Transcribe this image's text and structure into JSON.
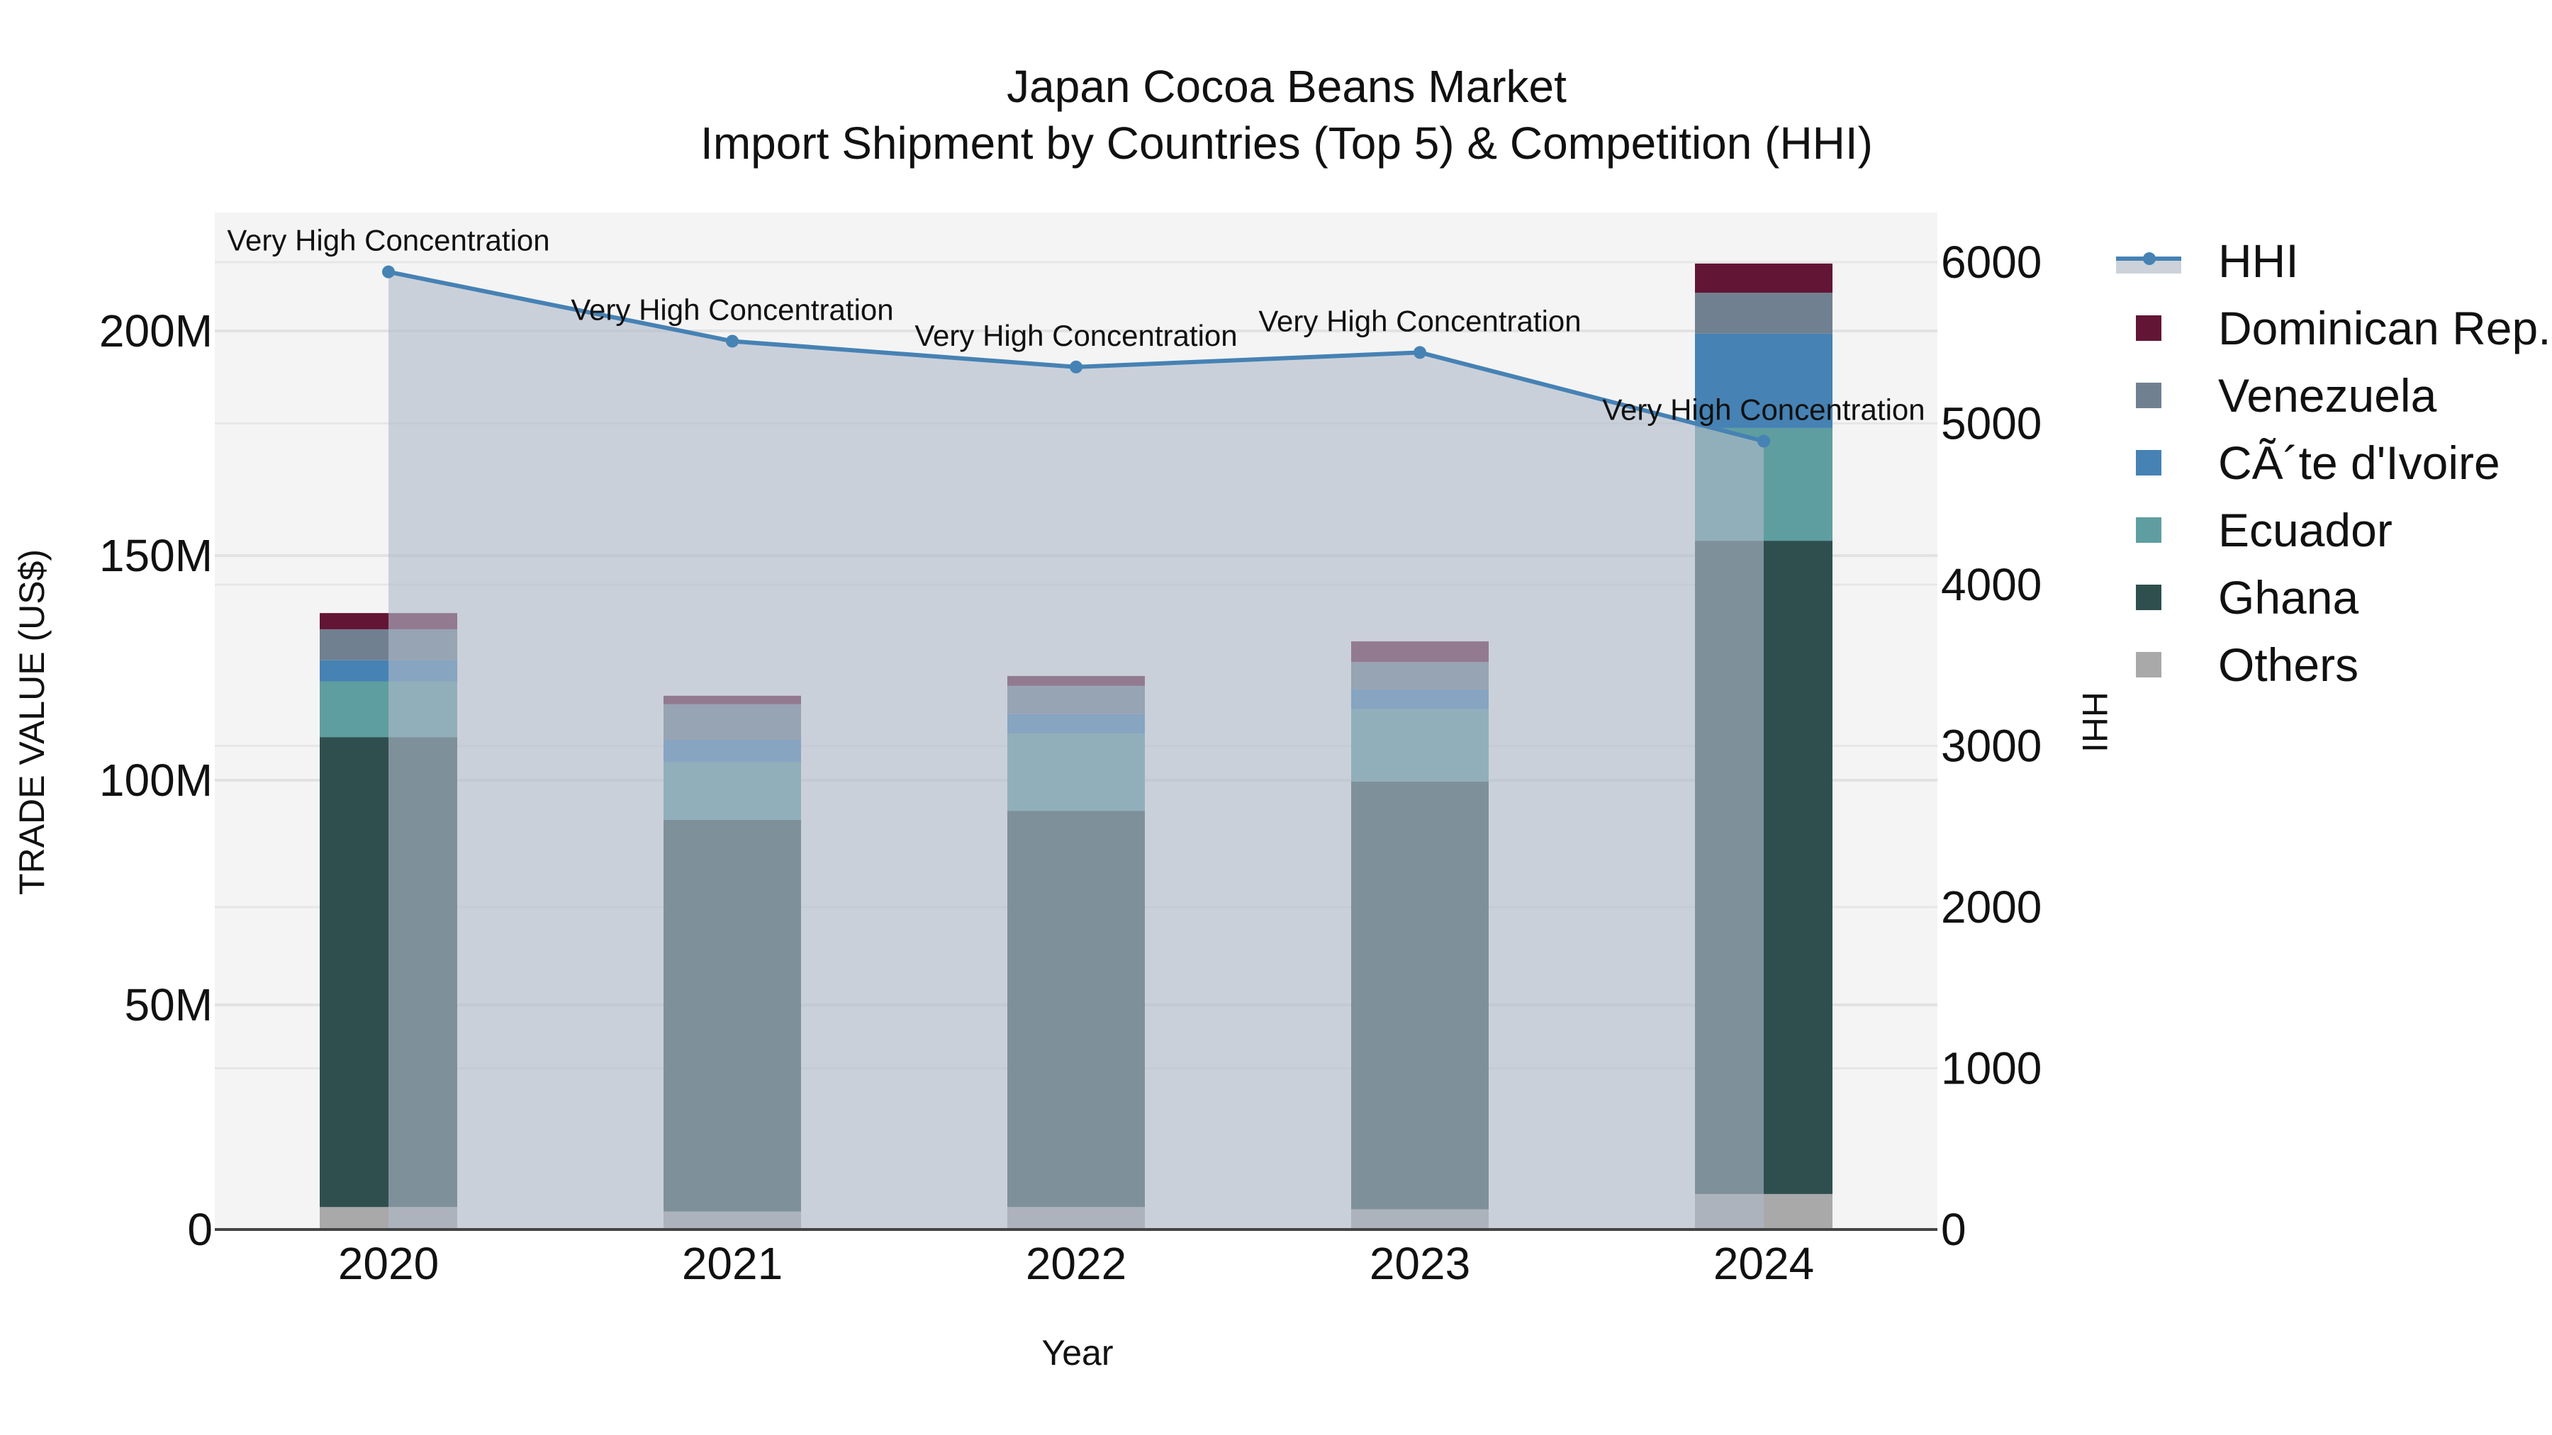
{
  "title": {
    "line1": "Japan Cocoa Beans Market",
    "line2": "Import Shipment by Countries (Top 5) & Competition (HHI)"
  },
  "axes": {
    "x_label": "Year",
    "y_left_label": "TRADE VALUE (US$)",
    "y_right_label": "HHI",
    "y_left_ticks": [
      "0",
      "50M",
      "100M",
      "150M",
      "200M"
    ],
    "y_right_ticks": [
      "0",
      "1000",
      "2000",
      "3000",
      "4000",
      "5000",
      "6000"
    ],
    "x_ticks": [
      "2020",
      "2021",
      "2022",
      "2023",
      "2024"
    ]
  },
  "legend": [
    {
      "label": "HHI",
      "type": "line",
      "color": "#4682b4"
    },
    {
      "label": "Dominican Rep.",
      "type": "bar",
      "color": "#631535"
    },
    {
      "label": "Venezuela",
      "type": "bar",
      "color": "#708090"
    },
    {
      "label": "CÃ´te d'Ivoire",
      "type": "bar",
      "color": "#4682b4"
    },
    {
      "label": "Ecuador",
      "type": "bar",
      "color": "#5f9ea0"
    },
    {
      "label": "Ghana",
      "type": "bar",
      "color": "#2f4f4f"
    },
    {
      "label": "Others",
      "type": "bar",
      "color": "#a9a9a9"
    }
  ],
  "annotations": [
    "Very High Concentration",
    "Very High Concentration",
    "Very High Concentration",
    "Very High Concentration",
    "Very High Concentration"
  ],
  "chart_data": {
    "type": "bar",
    "stacked": true,
    "title": "Japan Cocoa Beans Market — Import Shipment by Countries (Top 5) & Competition (HHI)",
    "xlabel": "Year",
    "ylabel": "TRADE VALUE (US$)",
    "y2label": "HHI",
    "categories": [
      "2020",
      "2021",
      "2022",
      "2023",
      "2024"
    ],
    "ylim": [
      0,
      226000000
    ],
    "y2lim": [
      0,
      6300
    ],
    "grid": true,
    "legend_position": "right",
    "series": [
      {
        "name": "Others",
        "color": "#a9a9a9",
        "values": [
          5000000,
          4000000,
          5000000,
          4500000,
          7900000
        ]
      },
      {
        "name": "Ghana",
        "color": "#2f4f4f",
        "values": [
          104600000,
          87200000,
          88200000,
          95200000,
          145400000
        ]
      },
      {
        "name": "Ecuador",
        "color": "#5f9ea0",
        "values": [
          12400000,
          12800000,
          17200000,
          16100000,
          25100000
        ]
      },
      {
        "name": "CÃ´te d'Ivoire",
        "color": "#4682b4",
        "values": [
          4700000,
          5000000,
          4300000,
          4400000,
          21000000
        ]
      },
      {
        "name": "Venezuela",
        "color": "#708090",
        "values": [
          6900000,
          7900000,
          6300000,
          6100000,
          9100000
        ]
      },
      {
        "name": "Dominican Rep.",
        "color": "#631535",
        "values": [
          3600000,
          1900000,
          2200000,
          4600000,
          6500000
        ]
      }
    ],
    "line_series": {
      "name": "HHI",
      "axis": "right",
      "color": "#4682b4",
      "fill": "tozeroy",
      "values": [
        5940,
        5510,
        5350,
        5440,
        4890
      ],
      "labels": [
        "Very High Concentration",
        "Very High Concentration",
        "Very High Concentration",
        "Very High Concentration",
        "Very High Concentration"
      ]
    }
  }
}
